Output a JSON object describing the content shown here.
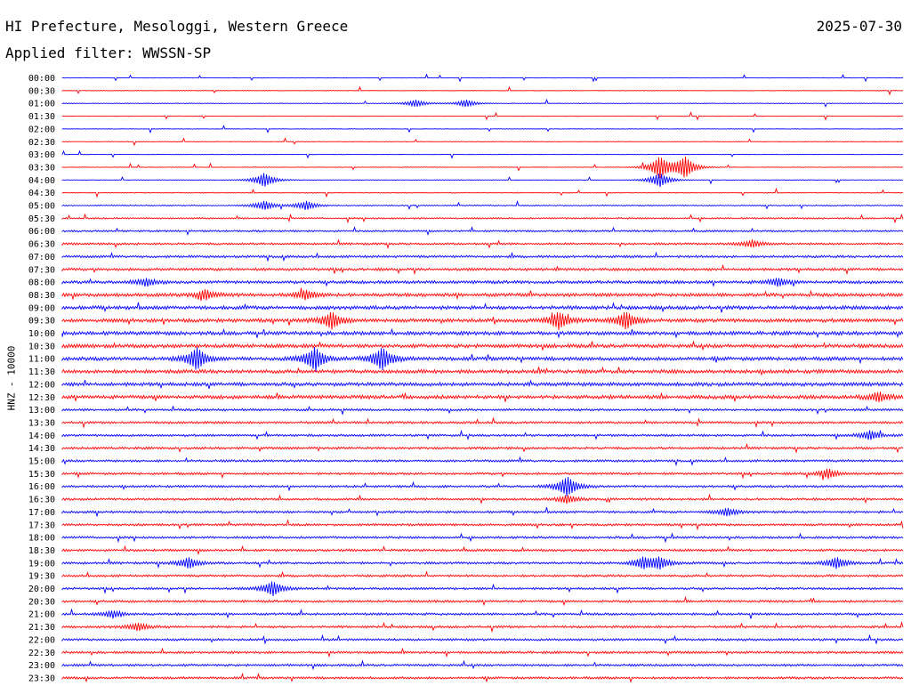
{
  "header": {
    "station": "HI Prefecture, Mesologgi, Western Greece",
    "date": "2025-07-30",
    "filter": "Applied filter: WWSSN-SP"
  },
  "colors": {
    "even_trace": "#0000ff",
    "odd_trace": "#ff0000",
    "text": "#000000",
    "background": "#ffffff"
  },
  "chart_data": {
    "type": "line",
    "title": "HI Prefecture, Mesologgi, Western Greece",
    "subtitle": "Applied filter: WWSSN-SP",
    "ylabel": "HNZ - 10000",
    "xlabel": "",
    "grid": false,
    "legend": "none",
    "row_labels": [
      "00:00",
      "00:30",
      "01:00",
      "01:30",
      "02:00",
      "02:30",
      "03:00",
      "03:30",
      "04:00",
      "04:30",
      "05:00",
      "05:30",
      "06:00",
      "06:30",
      "07:00",
      "07:30",
      "08:00",
      "08:30",
      "09:00",
      "09:30",
      "10:00",
      "10:30",
      "11:00",
      "11:30",
      "12:00",
      "12:30",
      "13:00",
      "13:30",
      "14:00",
      "14:30",
      "15:00",
      "15:30",
      "16:00",
      "16:30",
      "17:00",
      "17:30",
      "18:00",
      "18:30",
      "19:00",
      "19:30",
      "20:00",
      "20:30",
      "21:00",
      "21:30",
      "22:00",
      "22:30",
      "23:00",
      "23:30"
    ],
    "row_colors": [
      "blue",
      "red"
    ],
    "events": [
      {
        "row": "01:00",
        "at": [
          0.42,
          0.48
        ],
        "amp": 4
      },
      {
        "row": "03:30",
        "at": [
          0.71,
          0.74
        ],
        "amp": 12
      },
      {
        "row": "04:00",
        "at": [
          0.24,
          0.71
        ],
        "amp": 8
      },
      {
        "row": "05:00",
        "at": [
          0.24,
          0.29
        ],
        "amp": 5
      },
      {
        "row": "06:30",
        "at": [
          0.82
        ],
        "amp": 4
      },
      {
        "row": "08:00",
        "at": [
          0.1,
          0.85
        ],
        "amp": 4
      },
      {
        "row": "08:30",
        "at": [
          0.17,
          0.29
        ],
        "amp": 5
      },
      {
        "row": "09:30",
        "at": [
          0.32,
          0.59,
          0.67
        ],
        "amp": 9
      },
      {
        "row": "11:00",
        "at": [
          0.16,
          0.3,
          0.38
        ],
        "amp": 12
      },
      {
        "row": "12:30",
        "at": [
          0.97
        ],
        "amp": 5
      },
      {
        "row": "14:00",
        "at": [
          0.96
        ],
        "amp": 5
      },
      {
        "row": "15:30",
        "at": [
          0.91
        ],
        "amp": 5
      },
      {
        "row": "16:00",
        "at": [
          0.6
        ],
        "amp": 11
      },
      {
        "row": "16:30",
        "at": [
          0.6
        ],
        "amp": 4
      },
      {
        "row": "17:00",
        "at": [
          0.79
        ],
        "amp": 4
      },
      {
        "row": "19:00",
        "at": [
          0.15,
          0.69,
          0.71,
          0.92
        ],
        "amp": 6
      },
      {
        "row": "20:00",
        "at": [
          0.25
        ],
        "amp": 8
      },
      {
        "row": "21:00",
        "at": [
          0.06
        ],
        "amp": 4
      },
      {
        "row": "21:30",
        "at": [
          0.09
        ],
        "amp": 4
      }
    ]
  }
}
